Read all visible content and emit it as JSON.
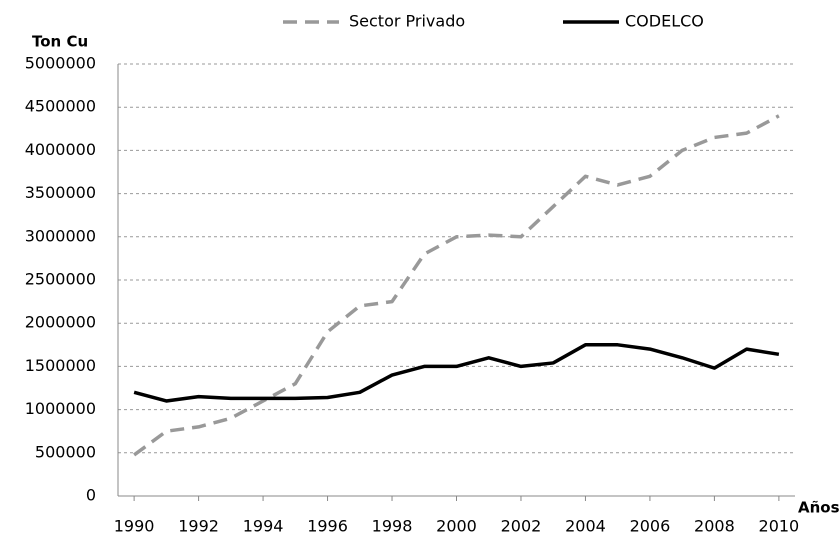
{
  "chart_data": {
    "type": "line",
    "y_label": "Ton Cu",
    "x_label": "Años",
    "x": [
      1990,
      1991,
      1992,
      1993,
      1994,
      1995,
      1996,
      1997,
      1998,
      1999,
      2000,
      2001,
      2002,
      2003,
      2004,
      2005,
      2006,
      2007,
      2008,
      2009,
      2010
    ],
    "series": [
      {
        "name": "Sector Privado",
        "color": "#999999",
        "dash": true,
        "values": [
          475000,
          750000,
          800000,
          900000,
          1100000,
          1300000,
          1900000,
          2200000,
          2250000,
          2800000,
          3000000,
          3020000,
          3000000,
          3350000,
          3700000,
          3600000,
          3700000,
          4000000,
          4150000,
          4200000,
          4400000
        ]
      },
      {
        "name": "CODELCO",
        "color": "#000000",
        "dash": false,
        "values": [
          1200000,
          1100000,
          1150000,
          1130000,
          1130000,
          1130000,
          1140000,
          1200000,
          1400000,
          1500000,
          1500000,
          1600000,
          1500000,
          1540000,
          1750000,
          1750000,
          1700000,
          1600000,
          1480000,
          1700000,
          1640000
        ]
      }
    ],
    "xlim": [
      1989.5,
      2010.5
    ],
    "xticks": [
      1990,
      1992,
      1994,
      1996,
      1998,
      2000,
      2002,
      2004,
      2006,
      2008,
      2010
    ],
    "ylim": [
      0,
      5000000
    ],
    "yticks": [
      0,
      500000,
      1000000,
      1500000,
      2000000,
      2500000,
      3000000,
      3500000,
      4000000,
      4500000,
      5000000
    ],
    "grid": true,
    "legend": "top"
  }
}
